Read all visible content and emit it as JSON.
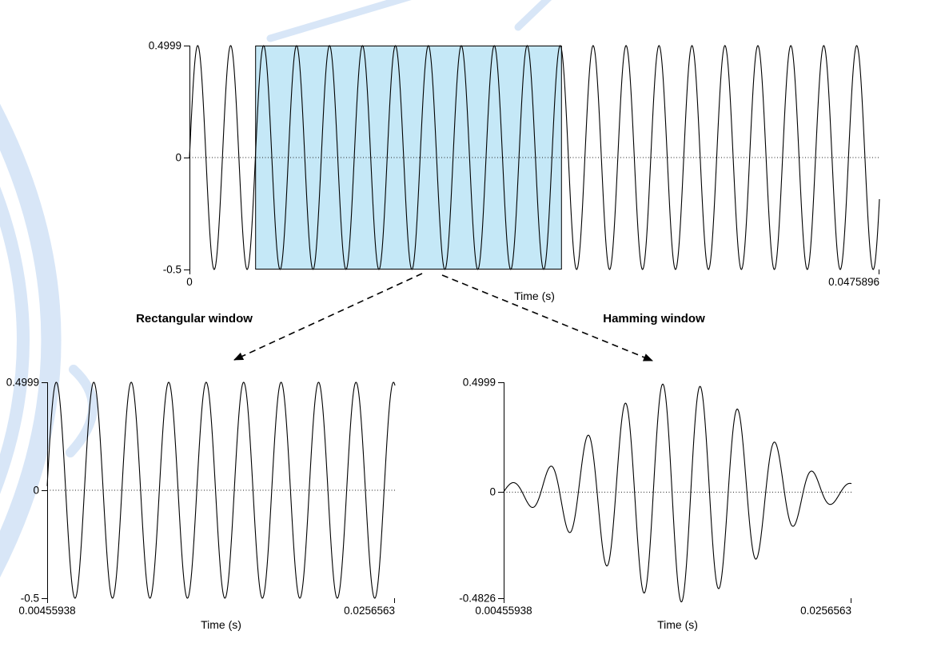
{
  "figure": {
    "selection_fill": "#c5e8f7",
    "watermark_color": "#d8e6f7"
  },
  "chart_data": [
    {
      "id": "full-waveform",
      "type": "line",
      "description": "Sine tone waveform with the selected analysis window highlighted",
      "signal": {
        "waveform": "sine",
        "frequency_hz": 440,
        "amplitude": 0.4999,
        "phase": 0
      },
      "window": "none",
      "xlim": [
        0,
        0.0475896
      ],
      "ylim": [
        -0.5,
        0.4999
      ],
      "x_ticks": [
        0,
        0.0475896
      ],
      "x_tick_labels": [
        "0",
        "0.0475896"
      ],
      "y_ticks": [
        0.4999,
        0,
        -0.5
      ],
      "y_tick_labels": [
        "0.4999",
        "0",
        "-0.5"
      ],
      "xlabel": "Time (s)",
      "grid": "zero-line-dotted",
      "selection": {
        "start": 0.00455938,
        "end": 0.0256563
      }
    },
    {
      "id": "rectangular-window",
      "title": "Rectangular window",
      "type": "line",
      "description": "Selected segment with rectangular window applied",
      "signal": {
        "waveform": "sine",
        "frequency_hz": 440,
        "amplitude": 0.4999,
        "phase": 0
      },
      "window": "rectangular",
      "xlim": [
        0.00455938,
        0.0256563
      ],
      "ylim": [
        -0.5,
        0.4999
      ],
      "x_ticks": [
        0.00455938,
        0.0256563
      ],
      "x_tick_labels": [
        "0.00455938",
        "0.0256563"
      ],
      "y_ticks": [
        0.4999,
        0,
        -0.5
      ],
      "y_tick_labels": [
        "0.4999",
        "0",
        "-0.5"
      ],
      "xlabel": "Time (s)",
      "grid": "zero-line-dotted"
    },
    {
      "id": "hamming-window",
      "title": "Hamming window",
      "type": "line",
      "description": "Selected segment with Hamming window applied",
      "signal": {
        "waveform": "sine",
        "frequency_hz": 440,
        "amplitude": 0.4999,
        "phase": 0
      },
      "window": "hamming",
      "xlim": [
        0.00455938,
        0.0256563
      ],
      "ylim": [
        -0.4826,
        0.4999
      ],
      "x_ticks": [
        0.00455938,
        0.0256563
      ],
      "x_tick_labels": [
        "0.00455938",
        "0.0256563"
      ],
      "y_ticks": [
        0.4999,
        0,
        -0.4826
      ],
      "y_tick_labels": [
        "0.4999",
        "0",
        "-0.4826"
      ],
      "xlabel": "Time (s)",
      "grid": "zero-line-dotted"
    }
  ]
}
